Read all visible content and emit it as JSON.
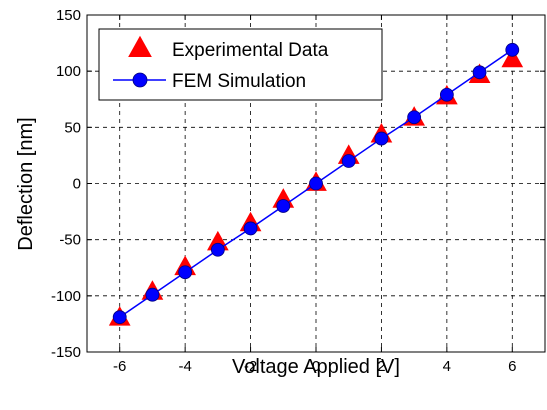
{
  "chart_data": {
    "type": "line",
    "title": "",
    "xlabel": "Voltage Applied [V]",
    "ylabel": "Deflection [nm]",
    "xlim": [
      -7,
      7
    ],
    "ylim": [
      -150,
      150
    ],
    "xticks": [
      -6,
      -4,
      -2,
      0,
      2,
      4,
      6
    ],
    "yticks": [
      -150,
      -100,
      -50,
      0,
      50,
      100,
      150
    ],
    "grid": true,
    "legend_position": "top-left",
    "series": [
      {
        "name": "Experimental Data",
        "marker": "triangle",
        "color": "#ff0000",
        "line": false,
        "x": [
          -6,
          -5,
          -4,
          -3,
          -2,
          -1,
          0,
          1,
          2,
          3,
          4,
          5,
          6
        ],
        "y": [
          -120,
          -97,
          -75,
          -53,
          -36,
          -15,
          0,
          24,
          43,
          58,
          77,
          96,
          110
        ]
      },
      {
        "name": "FEM Simulation",
        "marker": "circle",
        "color": "#0000ff",
        "line": true,
        "x": [
          -6,
          -5,
          -4,
          -3,
          -2,
          -1,
          0,
          1,
          2,
          3,
          4,
          5,
          6
        ],
        "y": [
          -119,
          -99,
          -79,
          -59,
          -40,
          -20,
          0,
          20,
          40,
          59,
          79,
          99,
          119
        ]
      }
    ]
  }
}
